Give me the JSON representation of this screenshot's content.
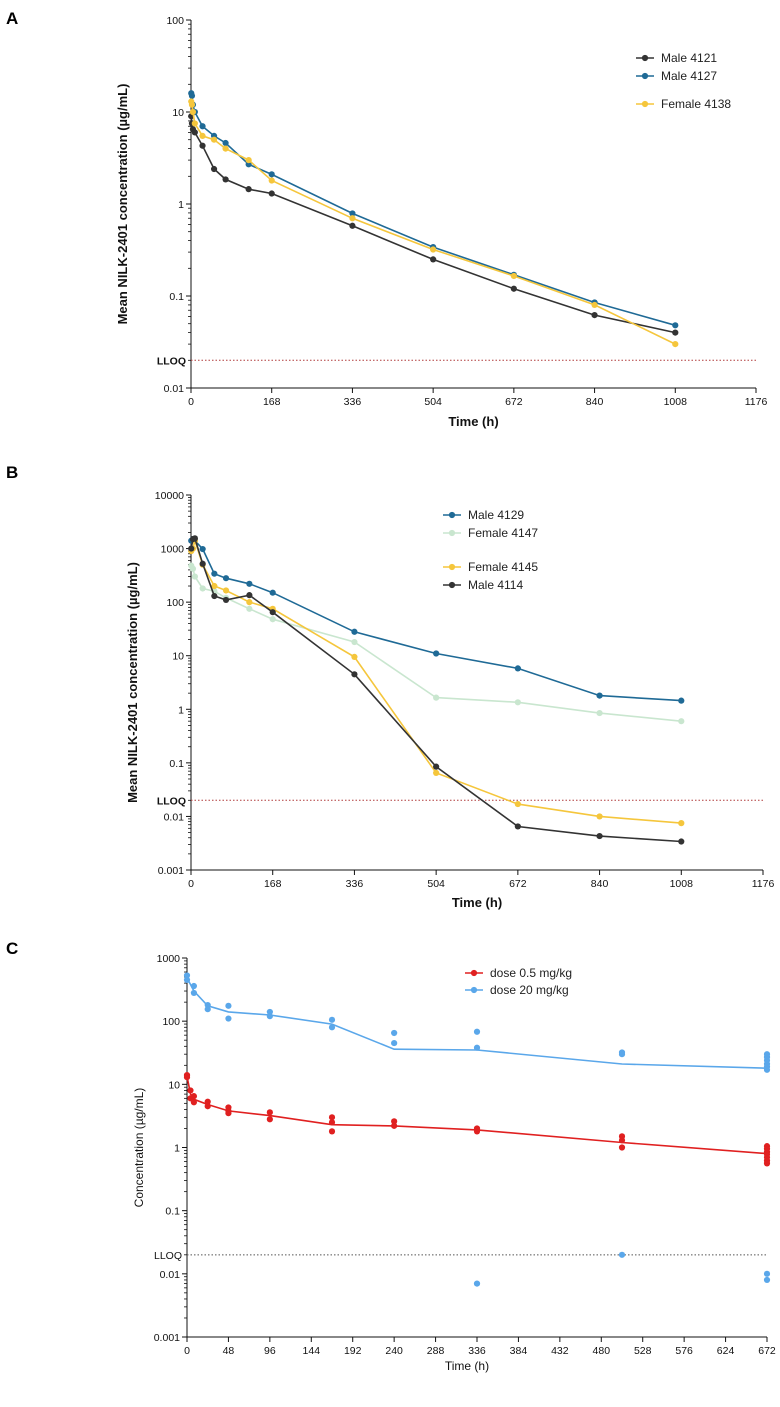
{
  "chart_data": [
    {
      "panel": "A",
      "type": "line",
      "scale": "log",
      "ylabel": "Mean NILK-2401 concentration (µg/mL)",
      "xlabel": "Time (h)",
      "xlim": [
        0,
        1176
      ],
      "ylim": [
        0.01,
        100
      ],
      "xticks": [
        0,
        168,
        336,
        504,
        672,
        840,
        1008,
        1176
      ],
      "yticks": [
        0.01,
        0.1,
        1,
        10,
        100
      ],
      "ytick_labels": [
        "0.01",
        "0.1",
        "1",
        "10",
        "100"
      ],
      "lloq": {
        "label": "LLOQ",
        "value": 0.02,
        "color": "#b03a3a"
      },
      "series": [
        {
          "name": "Male 4121",
          "color": "#333333",
          "x": [
            0.5,
            2,
            4,
            8,
            24,
            48,
            72,
            120,
            168,
            336,
            504,
            672,
            840,
            1008
          ],
          "y": [
            9,
            7.5,
            6.5,
            6,
            4.3,
            2.4,
            1.85,
            1.45,
            1.3,
            0.58,
            0.25,
            0.12,
            0.062,
            0.04
          ]
        },
        {
          "name": "Male 4127",
          "color": "#1f6a96",
          "x": [
            0.5,
            2,
            4,
            8,
            24,
            48,
            72,
            120,
            168,
            336,
            504,
            672,
            840,
            1008
          ],
          "y": [
            16,
            15,
            12,
            10,
            7,
            5.5,
            4.6,
            2.7,
            2.1,
            0.79,
            0.34,
            0.17,
            0.085,
            0.048
          ]
        },
        {
          "name": "Female 4138",
          "color": "#f5c63c",
          "x": [
            0.5,
            2,
            4,
            8,
            24,
            48,
            72,
            120,
            168,
            336,
            504,
            672,
            840,
            1008
          ],
          "y": [
            13,
            12,
            10,
            7.5,
            5.5,
            5,
            4,
            3,
            1.8,
            0.7,
            0.32,
            0.165,
            0.08,
            0.03
          ]
        }
      ]
    },
    {
      "panel": "B",
      "type": "line",
      "scale": "log",
      "ylabel": "Mean NILK-2401 concentration (µg/mL)",
      "xlabel": "Time (h)",
      "xlim": [
        0,
        1176
      ],
      "ylim": [
        0.001,
        10000
      ],
      "xticks": [
        0,
        168,
        336,
        504,
        672,
        840,
        1008,
        1176
      ],
      "yticks": [
        0.001,
        0.01,
        0.1,
        1,
        10,
        100,
        1000,
        10000
      ],
      "ytick_labels": [
        "0.001",
        "0.01",
        "0.1",
        "1",
        "10",
        "100",
        "1000",
        "10000"
      ],
      "lloq": {
        "label": "LLOQ",
        "value": 0.02,
        "color": "#b03a3a"
      },
      "series": [
        {
          "name": "Male 4129",
          "color": "#1f6a96",
          "x": [
            0.5,
            4,
            8,
            24,
            48,
            72,
            120,
            168,
            336,
            504,
            672,
            840,
            1008
          ],
          "y": [
            1400,
            1500,
            1400,
            980,
            340,
            280,
            220,
            150,
            28,
            11,
            5.8,
            1.8,
            1.45
          ]
        },
        {
          "name": "Female 4147",
          "color": "#c9e6cf",
          "x": [
            0.5,
            4,
            8,
            24,
            48,
            72,
            120,
            168,
            336,
            504,
            672,
            840,
            1008
          ],
          "y": [
            480,
            420,
            300,
            180,
            160,
            120,
            75,
            48,
            18,
            1.65,
            1.35,
            0.85,
            0.6
          ]
        },
        {
          "name": "Female 4145",
          "color": "#f5c63c",
          "x": [
            0.5,
            4,
            8,
            24,
            48,
            72,
            120,
            168,
            336,
            504,
            672,
            840,
            1008
          ],
          "y": [
            900,
            1000,
            1400,
            500,
            200,
            165,
            100,
            75,
            9.5,
            0.065,
            0.017,
            0.01,
            0.0075
          ]
        },
        {
          "name": "Male 4114",
          "color": "#333333",
          "x": [
            0.5,
            4,
            8,
            24,
            48,
            72,
            120,
            168,
            336,
            504,
            672,
            840,
            1008
          ],
          "y": [
            1000,
            1500,
            1550,
            520,
            130,
            110,
            135,
            65,
            4.5,
            0.085,
            0.0065,
            0.0043,
            0.0034
          ]
        }
      ]
    },
    {
      "panel": "C",
      "type": "scatter",
      "scale": "log",
      "ylabel": "Concentration (µg/mL)",
      "xlabel": "Time (h)",
      "xlim": [
        0,
        672
      ],
      "ylim": [
        0.001,
        1000
      ],
      "xticks": [
        0,
        48,
        96,
        144,
        192,
        240,
        288,
        336,
        384,
        432,
        480,
        528,
        576,
        624,
        672
      ],
      "yticks": [
        0.001,
        0.01,
        0.1,
        1,
        10,
        100,
        1000
      ],
      "ytick_labels": [
        "0.001",
        "0.01",
        "0.1",
        "1",
        "10",
        "100",
        "1000"
      ],
      "lloq": {
        "label": "LLOQ",
        "value": 0.02,
        "color": "#555555"
      },
      "series": [
        {
          "name": "dose 0.5 mg/kg",
          "color": "#e02020",
          "line_x": [
            0,
            4,
            8,
            24,
            48,
            96,
            168,
            240,
            336,
            504,
            672
          ],
          "line_y": [
            13.5,
            7,
            5.8,
            4.8,
            3.8,
            3.2,
            2.3,
            2.2,
            1.9,
            1.2,
            0.8
          ],
          "points_x": [
            0,
            0,
            4,
            4,
            8,
            8,
            24,
            24,
            48,
            48,
            48,
            96,
            96,
            168,
            168,
            168,
            240,
            240,
            336,
            336,
            504,
            504,
            504,
            672,
            672,
            672,
            672,
            672,
            672,
            672
          ],
          "points_y": [
            14,
            13,
            8,
            6,
            6.5,
            5.2,
            5.3,
            4.5,
            4.3,
            3.8,
            3.5,
            3.6,
            2.8,
            3,
            2.5,
            1.8,
            2.6,
            2.2,
            2.0,
            1.8,
            1.5,
            1.3,
            1.0,
            1.05,
            0.95,
            0.85,
            0.78,
            0.7,
            0.62,
            0.56
          ]
        },
        {
          "name": "dose 20 mg/kg",
          "color": "#5aa7ea",
          "line_x": [
            0,
            4,
            8,
            24,
            48,
            96,
            168,
            240,
            336,
            504,
            672
          ],
          "line_y": [
            480,
            380,
            300,
            175,
            140,
            125,
            90,
            36,
            35,
            21,
            18
          ],
          "points_x": [
            0,
            0,
            8,
            8,
            24,
            24,
            48,
            48,
            96,
            96,
            168,
            168,
            240,
            240,
            336,
            336,
            336,
            504,
            504,
            504,
            672,
            672,
            672,
            672,
            672,
            672,
            672,
            672
          ],
          "points_y": [
            530,
            450,
            360,
            280,
            180,
            155,
            175,
            110,
            140,
            120,
            105,
            80,
            65,
            45,
            68,
            38,
            0.007,
            32,
            30,
            0.02,
            30,
            27,
            24,
            21,
            19,
            17,
            0.01,
            0.008
          ]
        }
      ]
    }
  ],
  "labels": {
    "panel_a": "A",
    "panel_b": "B",
    "panel_c": "C"
  }
}
